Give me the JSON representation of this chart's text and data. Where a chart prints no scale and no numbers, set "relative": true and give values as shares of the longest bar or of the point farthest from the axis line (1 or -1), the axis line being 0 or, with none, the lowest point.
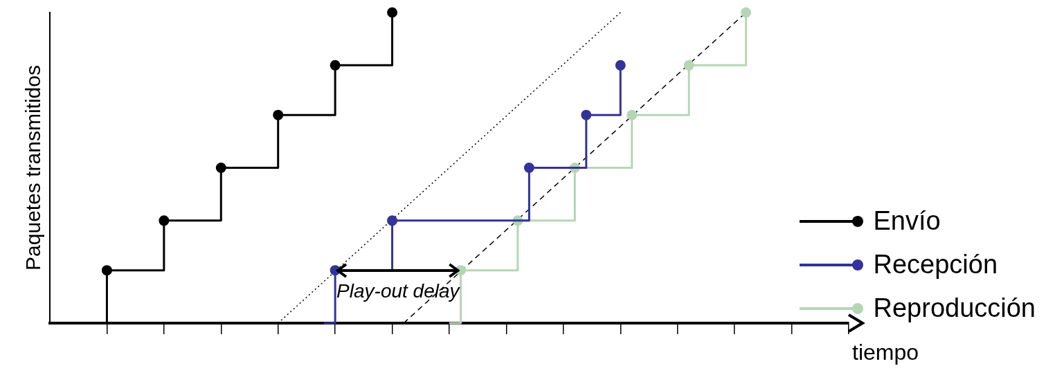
{
  "chart_data": {
    "type": "step",
    "relative": true,
    "xlabel": "tiempo",
    "ylabel": "Paquetes transmitidos",
    "grid": false,
    "legend": "right",
    "marker": "circle",
    "annotations": [
      "Play-out delay"
    ],
    "categories": [
      null,
      null,
      null,
      null,
      null,
      null,
      null,
      null,
      null,
      null,
      null,
      null,
      null,
      null,
      null,
      null,
      null,
      null,
      null,
      null,
      null,
      null,
      null,
      null,
      null,
      null,
      null,
      null,
      null,
      null,
      null,
      null,
      null,
      null,
      null,
      null,
      null,
      null,
      null,
      null,
      null,
      null,
      null,
      null,
      null,
      null,
      null,
      null,
      null,
      null,
      null,
      null,
      null,
      null,
      null,
      null,
      null,
      null,
      null,
      null,
      null,
      null,
      null,
      null,
      null,
      null,
      null,
      null,
      null,
      null,
      null
    ],
    "series": [
      {
        "name": "Envío",
        "color": "#000000",
        "values": [
          null,
          null,
          null,
          null,
          0,
          0.17,
          null,
          null,
          null,
          null,
          0.33,
          null,
          null,
          null,
          null,
          0.5,
          null,
          null,
          null,
          null,
          0.67,
          null,
          null,
          null,
          null,
          0.83,
          null,
          null,
          null,
          null,
          1,
          null,
          null,
          null,
          null,
          null,
          null,
          null,
          null,
          null,
          null,
          null,
          null,
          null,
          null,
          null,
          null,
          null,
          null,
          null,
          null,
          null,
          null,
          null,
          null,
          null,
          null,
          null,
          null,
          null,
          null,
          null,
          null,
          null,
          null,
          null,
          null,
          null,
          null,
          null,
          null
        ]
      },
      {
        "name": "Recepción",
        "color": "#333399",
        "values": [
          null,
          null,
          null,
          null,
          null,
          null,
          null,
          null,
          null,
          null,
          null,
          null,
          null,
          null,
          null,
          null,
          null,
          null,
          null,
          null,
          null,
          null,
          null,
          null,
          0,
          0.17,
          null,
          null,
          null,
          null,
          0.33,
          null,
          null,
          null,
          null,
          null,
          null,
          null,
          null,
          null,
          null,
          null,
          0.5,
          null,
          null,
          null,
          null,
          0.67,
          null,
          null,
          0.83,
          null,
          null,
          null,
          null,
          null,
          null,
          null,
          null,
          null,
          null,
          null,
          null,
          null,
          null,
          null,
          null,
          null,
          null,
          null,
          null
        ]
      },
      {
        "name": "Reproducción",
        "color": "#b5d6b5",
        "values": [
          null,
          null,
          null,
          null,
          null,
          null,
          null,
          null,
          null,
          null,
          null,
          null,
          null,
          null,
          null,
          null,
          null,
          null,
          null,
          null,
          null,
          null,
          null,
          null,
          null,
          null,
          null,
          null,
          null,
          null,
          null,
          null,
          null,
          null,
          null,
          0,
          0.17,
          null,
          null,
          null,
          null,
          0.33,
          null,
          null,
          null,
          null,
          0.5,
          null,
          null,
          null,
          null,
          0.67,
          null,
          null,
          null,
          null,
          0.83,
          null,
          null,
          null,
          null,
          1,
          null,
          null,
          null,
          null,
          null,
          null,
          null,
          null,
          null
        ]
      },
      {
        "type": "line",
        "color": "#000000",
        "line_style": "dotted",
        "marker": "none",
        "values": [
          null,
          null,
          null,
          null,
          null,
          null,
          null,
          null,
          null,
          null,
          null,
          null,
          null,
          null,
          null,
          null,
          null,
          null,
          null,
          null,
          0,
          null,
          null,
          null,
          null,
          null,
          null,
          null,
          null,
          null,
          null,
          null,
          null,
          null,
          null,
          null,
          null,
          null,
          null,
          null,
          null,
          null,
          null,
          null,
          null,
          null,
          null,
          null,
          null,
          null,
          1,
          null,
          null,
          null,
          null,
          null,
          null,
          null,
          null,
          null,
          null,
          null,
          null,
          null,
          null,
          null,
          null,
          null,
          null,
          null,
          null
        ]
      },
      {
        "type": "line",
        "color": "#000000",
        "line_style": "dashed",
        "marker": "none",
        "values": [
          null,
          null,
          null,
          null,
          null,
          null,
          null,
          null,
          null,
          null,
          null,
          null,
          null,
          null,
          null,
          null,
          null,
          null,
          null,
          null,
          null,
          null,
          null,
          null,
          null,
          null,
          null,
          null,
          null,
          null,
          null,
          0,
          null,
          null,
          null,
          null,
          null,
          null,
          null,
          null,
          null,
          null,
          null,
          null,
          null,
          null,
          null,
          null,
          null,
          null,
          null,
          null,
          null,
          null,
          null,
          null,
          null,
          null,
          null,
          null,
          null,
          1,
          null,
          null,
          null,
          null,
          null,
          null,
          null,
          null,
          null
        ]
      }
    ]
  }
}
